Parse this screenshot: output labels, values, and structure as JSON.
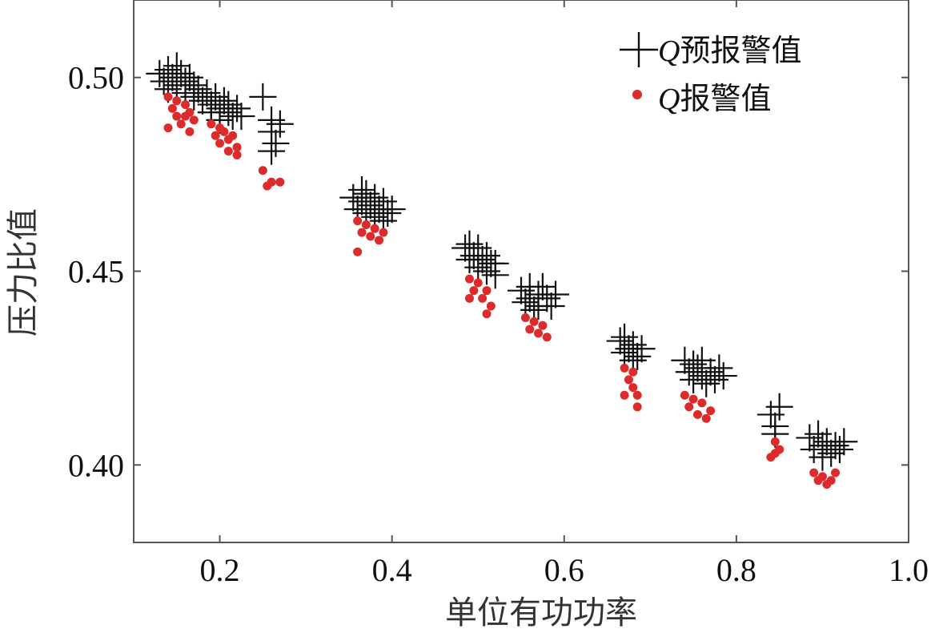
{
  "chart_data": {
    "type": "scatter",
    "title": "",
    "xlabel": "单位有功功率",
    "ylabel": "压力比值",
    "xlim": [
      0.1,
      1.0
    ],
    "ylim": [
      0.38,
      0.52
    ],
    "grid": false,
    "legend_position": "top-right",
    "x_ticks": [
      {
        "value": 0.2,
        "label": "0.2"
      },
      {
        "value": 0.4,
        "label": "0.4"
      },
      {
        "value": 0.6,
        "label": "0.6"
      },
      {
        "value": 0.8,
        "label": "0.8"
      },
      {
        "value": 1.0,
        "label": "1.0"
      }
    ],
    "y_ticks": [
      {
        "value": 0.4,
        "label": "0.40"
      },
      {
        "value": 0.45,
        "label": "0.45"
      },
      {
        "value": 0.5,
        "label": "0.50"
      }
    ],
    "series": [
      {
        "name": "Q预报警值",
        "legend_symbol": "Q",
        "legend_text": "预报警值",
        "marker": "plus",
        "color": "#111111",
        "points": [
          [
            0.13,
            0.501
          ],
          [
            0.135,
            0.499
          ],
          [
            0.14,
            0.502
          ],
          [
            0.14,
            0.497
          ],
          [
            0.145,
            0.5
          ],
          [
            0.15,
            0.503
          ],
          [
            0.15,
            0.498
          ],
          [
            0.155,
            0.501
          ],
          [
            0.16,
            0.499
          ],
          [
            0.16,
            0.496
          ],
          [
            0.165,
            0.5
          ],
          [
            0.17,
            0.498
          ],
          [
            0.17,
            0.495
          ],
          [
            0.175,
            0.497
          ],
          [
            0.18,
            0.494
          ],
          [
            0.185,
            0.496
          ],
          [
            0.19,
            0.493
          ],
          [
            0.19,
            0.491
          ],
          [
            0.195,
            0.495
          ],
          [
            0.2,
            0.492
          ],
          [
            0.2,
            0.489
          ],
          [
            0.205,
            0.494
          ],
          [
            0.21,
            0.491
          ],
          [
            0.21,
            0.493
          ],
          [
            0.215,
            0.49
          ],
          [
            0.22,
            0.492
          ],
          [
            0.225,
            0.49
          ],
          [
            0.25,
            0.495
          ],
          [
            0.26,
            0.489
          ],
          [
            0.26,
            0.486
          ],
          [
            0.265,
            0.483
          ],
          [
            0.27,
            0.488
          ],
          [
            0.26,
            0.481
          ],
          [
            0.355,
            0.469
          ],
          [
            0.36,
            0.466
          ],
          [
            0.365,
            0.471
          ],
          [
            0.365,
            0.468
          ],
          [
            0.37,
            0.465
          ],
          [
            0.37,
            0.47
          ],
          [
            0.375,
            0.467
          ],
          [
            0.38,
            0.469
          ],
          [
            0.38,
            0.464
          ],
          [
            0.385,
            0.466
          ],
          [
            0.39,
            0.468
          ],
          [
            0.39,
            0.463
          ],
          [
            0.395,
            0.465
          ],
          [
            0.4,
            0.466
          ],
          [
            0.485,
            0.456
          ],
          [
            0.49,
            0.453
          ],
          [
            0.49,
            0.457
          ],
          [
            0.495,
            0.454
          ],
          [
            0.5,
            0.451
          ],
          [
            0.5,
            0.456
          ],
          [
            0.505,
            0.453
          ],
          [
            0.51,
            0.45
          ],
          [
            0.51,
            0.454
          ],
          [
            0.515,
            0.452
          ],
          [
            0.52,
            0.449
          ],
          [
            0.52,
            0.452
          ],
          [
            0.55,
            0.445
          ],
          [
            0.555,
            0.442
          ],
          [
            0.56,
            0.446
          ],
          [
            0.56,
            0.443
          ],
          [
            0.565,
            0.44
          ],
          [
            0.57,
            0.444
          ],
          [
            0.57,
            0.441
          ],
          [
            0.575,
            0.446
          ],
          [
            0.58,
            0.443
          ],
          [
            0.585,
            0.441
          ],
          [
            0.59,
            0.444
          ],
          [
            0.665,
            0.432
          ],
          [
            0.67,
            0.429
          ],
          [
            0.67,
            0.433
          ],
          [
            0.675,
            0.43
          ],
          [
            0.68,
            0.427
          ],
          [
            0.68,
            0.431
          ],
          [
            0.685,
            0.428
          ],
          [
            0.69,
            0.43
          ],
          [
            0.74,
            0.427
          ],
          [
            0.745,
            0.424
          ],
          [
            0.75,
            0.426
          ],
          [
            0.75,
            0.422
          ],
          [
            0.755,
            0.425
          ],
          [
            0.76,
            0.423
          ],
          [
            0.76,
            0.427
          ],
          [
            0.765,
            0.421
          ],
          [
            0.77,
            0.424
          ],
          [
            0.775,
            0.422
          ],
          [
            0.78,
            0.425
          ],
          [
            0.785,
            0.423
          ],
          [
            0.84,
            0.413
          ],
          [
            0.845,
            0.41
          ],
          [
            0.85,
            0.415
          ],
          [
            0.845,
            0.408
          ],
          [
            0.885,
            0.407
          ],
          [
            0.89,
            0.404
          ],
          [
            0.895,
            0.408
          ],
          [
            0.9,
            0.405
          ],
          [
            0.9,
            0.402
          ],
          [
            0.905,
            0.406
          ],
          [
            0.91,
            0.403
          ],
          [
            0.915,
            0.405
          ],
          [
            0.92,
            0.404
          ],
          [
            0.925,
            0.406
          ]
        ]
      },
      {
        "name": "Q报警值",
        "legend_symbol": "Q",
        "legend_text": "报警值",
        "marker": "dot",
        "color": "#dd2b2b",
        "points": [
          [
            0.14,
            0.495
          ],
          [
            0.145,
            0.492
          ],
          [
            0.15,
            0.494
          ],
          [
            0.15,
            0.49
          ],
          [
            0.155,
            0.488
          ],
          [
            0.16,
            0.493
          ],
          [
            0.16,
            0.49
          ],
          [
            0.165,
            0.491
          ],
          [
            0.17,
            0.489
          ],
          [
            0.14,
            0.487
          ],
          [
            0.165,
            0.486
          ],
          [
            0.19,
            0.488
          ],
          [
            0.195,
            0.485
          ],
          [
            0.2,
            0.487
          ],
          [
            0.2,
            0.483
          ],
          [
            0.205,
            0.486
          ],
          [
            0.21,
            0.484
          ],
          [
            0.21,
            0.481
          ],
          [
            0.215,
            0.485
          ],
          [
            0.22,
            0.482
          ],
          [
            0.22,
            0.48
          ],
          [
            0.25,
            0.476
          ],
          [
            0.255,
            0.472
          ],
          [
            0.26,
            0.473
          ],
          [
            0.27,
            0.473
          ],
          [
            0.36,
            0.463
          ],
          [
            0.365,
            0.46
          ],
          [
            0.37,
            0.462
          ],
          [
            0.375,
            0.459
          ],
          [
            0.38,
            0.461
          ],
          [
            0.385,
            0.458
          ],
          [
            0.39,
            0.46
          ],
          [
            0.36,
            0.455
          ],
          [
            0.49,
            0.448
          ],
          [
            0.495,
            0.445
          ],
          [
            0.5,
            0.447
          ],
          [
            0.505,
            0.443
          ],
          [
            0.51,
            0.445
          ],
          [
            0.515,
            0.441
          ],
          [
            0.51,
            0.439
          ],
          [
            0.49,
            0.443
          ],
          [
            0.555,
            0.438
          ],
          [
            0.56,
            0.435
          ],
          [
            0.565,
            0.437
          ],
          [
            0.57,
            0.434
          ],
          [
            0.575,
            0.436
          ],
          [
            0.58,
            0.433
          ],
          [
            0.67,
            0.425
          ],
          [
            0.675,
            0.422
          ],
          [
            0.68,
            0.424
          ],
          [
            0.68,
            0.42
          ],
          [
            0.685,
            0.418
          ],
          [
            0.67,
            0.418
          ],
          [
            0.685,
            0.415
          ],
          [
            0.74,
            0.418
          ],
          [
            0.745,
            0.415
          ],
          [
            0.75,
            0.417
          ],
          [
            0.755,
            0.413
          ],
          [
            0.76,
            0.416
          ],
          [
            0.765,
            0.412
          ],
          [
            0.77,
            0.414
          ],
          [
            0.845,
            0.406
          ],
          [
            0.845,
            0.403
          ],
          [
            0.85,
            0.404
          ],
          [
            0.84,
            0.402
          ],
          [
            0.89,
            0.398
          ],
          [
            0.895,
            0.396
          ],
          [
            0.9,
            0.397
          ],
          [
            0.905,
            0.395
          ],
          [
            0.91,
            0.396
          ],
          [
            0.915,
            0.398
          ]
        ]
      }
    ]
  }
}
